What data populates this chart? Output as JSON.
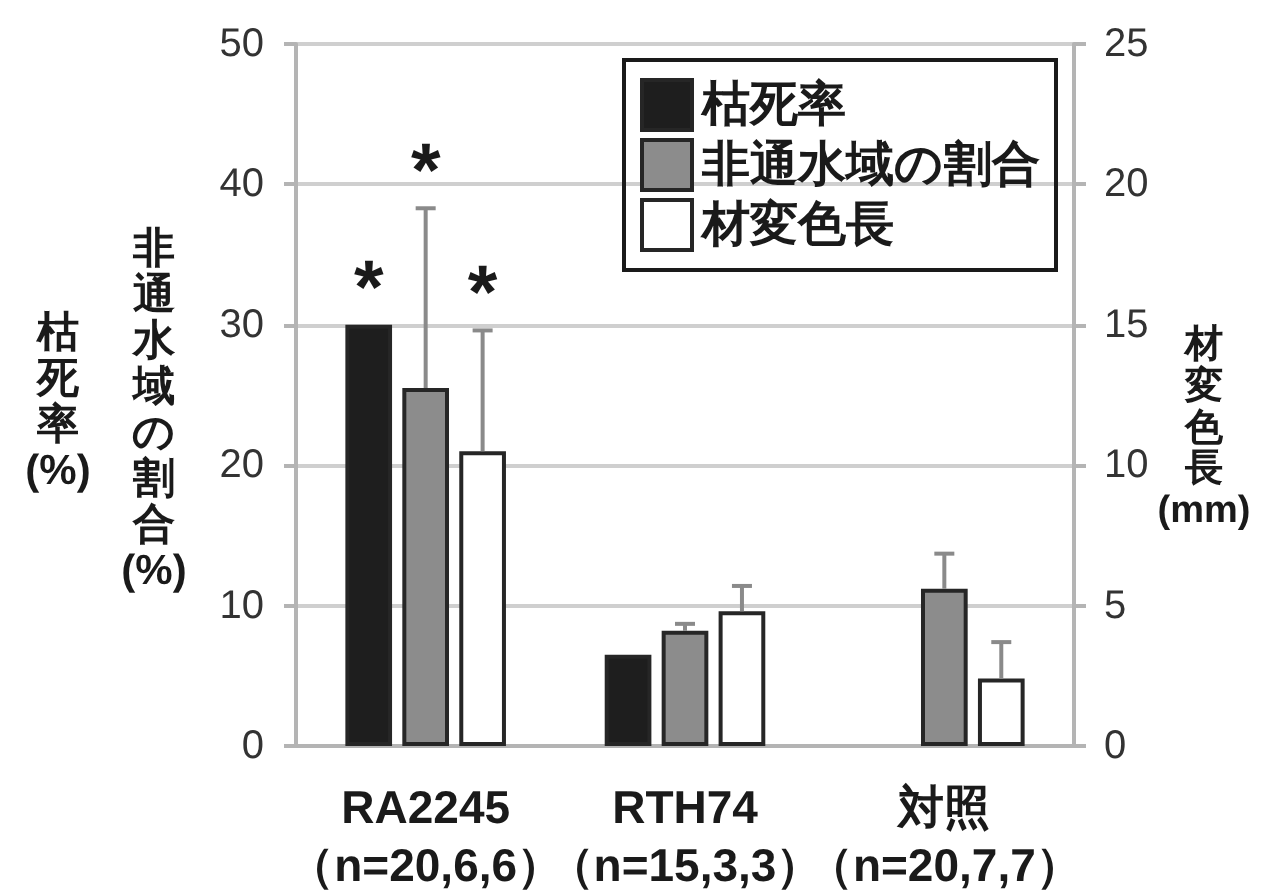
{
  "chart_data": {
    "type": "bar",
    "categories": [
      "RA2245\n（n=20,6,6）",
      "RTH74\n（n=15,3,3）",
      "対照（n=20,7,7）"
    ],
    "series": [
      {
        "name": "枯死率",
        "color": "#1e1e1e",
        "values": [
          30,
          6.5,
          0
        ]
      },
      {
        "name": "非通水域の割合",
        "color": "#8c8c8c",
        "values": [
          25.5,
          8.2,
          11.2
        ],
        "errors": [
          [
            25.5,
            38.3
          ],
          [
            8.2,
            8.7
          ],
          [
            11.2,
            13.7
          ]
        ]
      },
      {
        "name": "材変色長",
        "color": "#ffffff",
        "axis": "y2",
        "values": [
          10.5,
          4.8,
          2.4
        ],
        "errors": [
          [
            10.5,
            14.8
          ],
          [
            4.8,
            5.7
          ],
          [
            2.4,
            3.7
          ]
        ]
      }
    ],
    "ylabel": "枯死率(%)",
    "y2label": "材変色長(mm)",
    "annotations": [
      "非通水域の割合(%)",
      {
        "text": "*",
        "x": "RA2245\n（n=20,6,6）",
        "y": 30
      },
      {
        "text": "*",
        "x": "RA2245\n（n=20,6,6）",
        "y": 38.3
      },
      {
        "text": "*",
        "x": "RA2245\n（n=20,6,6）",
        "y": 29.6
      }
    ],
    "ylim": [
      0,
      50
    ],
    "yticks": [
      0,
      10,
      20,
      30,
      40,
      50
    ],
    "y2lim": [
      0,
      25
    ],
    "y2ticks": [
      0,
      5,
      10,
      15,
      20,
      25
    ],
    "grid": "y",
    "legend": "top right"
  }
}
